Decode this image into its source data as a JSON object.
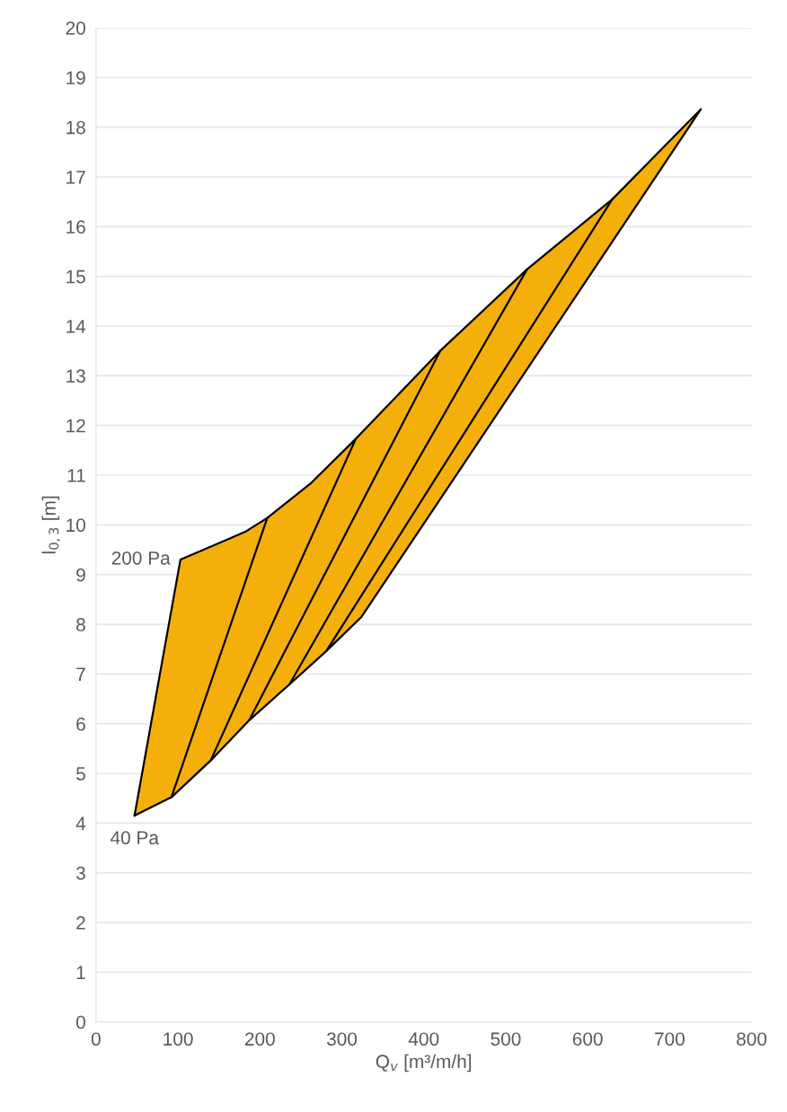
{
  "chart_data": {
    "type": "line",
    "xlabel": "Q$_{v}$ [m³/m/h]",
    "ylabel": "l$_{0,3}$ [m]",
    "xlim": [
      0,
      800
    ],
    "xticks": [
      0,
      100,
      200,
      300,
      400,
      500,
      600,
      700,
      800
    ],
    "ylim": [
      0,
      20
    ],
    "yticks": [
      0,
      1,
      2,
      3,
      4,
      5,
      6,
      7,
      8,
      9,
      10,
      11,
      12,
      13,
      14,
      15,
      16,
      17,
      18,
      19,
      20
    ],
    "grid": "y",
    "colors": [
      "#f5af0a"
    ],
    "marker": "none",
    "line_style": "solid",
    "annotations": [
      {
        "text": "200 Pa",
        "x": 103,
        "y": 9.3
      },
      {
        "text": "40 Pa",
        "x": 47,
        "y": 4.15
      }
    ],
    "series": [
      {
        "color": "#000000",
        "x": [
          47,
          103,
          182,
          209,
          263,
          317,
          420,
          526,
          630,
          738
        ],
        "values": [
          4.15,
          9.3,
          9.86,
          10.14,
          10.85,
          11.73,
          13.5,
          15.14,
          16.55,
          18.36
        ]
      },
      {
        "color": "#000000",
        "x": [
          47,
          92,
          140,
          187,
          236,
          281,
          324,
          738
        ],
        "values": [
          4.15,
          4.52,
          5.26,
          6.07,
          6.79,
          7.46,
          8.15,
          18.36
        ]
      },
      {
        "color": "#000000",
        "x": [
          92,
          209
        ],
        "values": [
          4.52,
          10.14
        ]
      },
      {
        "color": "#000000",
        "x": [
          140,
          317
        ],
        "values": [
          5.26,
          11.73
        ]
      },
      {
        "color": "#000000",
        "x": [
          187,
          420
        ],
        "values": [
          6.07,
          13.5
        ]
      },
      {
        "color": "#000000",
        "x": [
          236,
          526
        ],
        "values": [
          6.79,
          15.14
        ]
      },
      {
        "color": "#000000",
        "x": [
          281,
          630
        ],
        "values": [
          7.46,
          16.55
        ]
      }
    ]
  }
}
